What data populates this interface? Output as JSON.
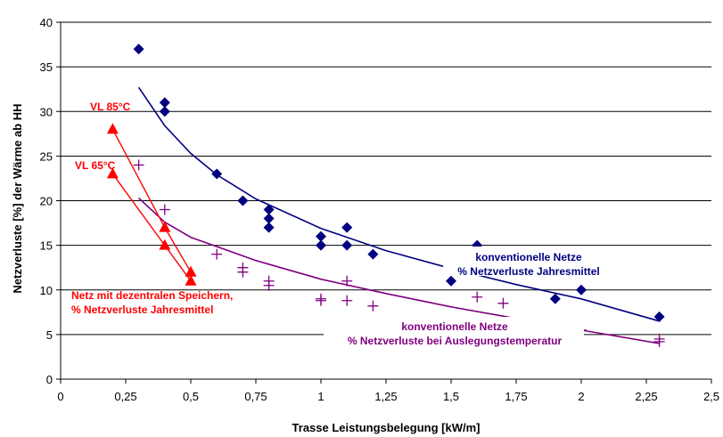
{
  "chart_data": {
    "type": "scatter",
    "xlabel": "Trasse Leistungsbelegung [kW/m]",
    "ylabel": "Netzverluste [%] der Wärme ab HH",
    "xlim": [
      0,
      2.5
    ],
    "ylim": [
      0,
      40
    ],
    "x_ticks": [
      "0",
      "0,25",
      "0,5",
      "0,75",
      "1",
      "1,25",
      "1,5",
      "1,75",
      "2",
      "2,25",
      "2,5"
    ],
    "y_ticks": [
      "0",
      "5",
      "10",
      "15",
      "20",
      "25",
      "30",
      "35",
      "40"
    ],
    "grid": "horizontal",
    "series": [
      {
        "marker": "diamond",
        "color": "#000080",
        "points": [
          [
            0.3,
            37
          ],
          [
            0.4,
            31
          ],
          [
            0.4,
            30
          ],
          [
            0.6,
            23
          ],
          [
            0.7,
            20
          ],
          [
            0.8,
            19
          ],
          [
            0.8,
            18
          ],
          [
            0.8,
            17
          ],
          [
            1.0,
            16
          ],
          [
            1.0,
            15
          ],
          [
            1.1,
            17
          ],
          [
            1.1,
            15
          ],
          [
            1.2,
            14
          ],
          [
            1.5,
            11
          ],
          [
            1.6,
            15
          ],
          [
            1.9,
            9
          ],
          [
            2.0,
            10
          ],
          [
            2.3,
            7
          ]
        ],
        "trendline": [
          [
            0.3,
            32.7
          ],
          [
            0.4,
            28.4
          ],
          [
            0.5,
            25.3
          ],
          [
            0.6,
            22.9
          ],
          [
            0.75,
            20.2
          ],
          [
            1.0,
            16.9
          ],
          [
            1.25,
            14.4
          ],
          [
            1.5,
            12.4
          ],
          [
            1.75,
            10.6
          ],
          [
            2.0,
            9.0
          ],
          [
            2.3,
            6.5
          ]
        ]
      },
      {
        "marker": "plus",
        "color": "#800080",
        "points": [
          [
            0.3,
            24
          ],
          [
            0.4,
            19
          ],
          [
            0.6,
            14
          ],
          [
            0.7,
            12.5
          ],
          [
            0.7,
            12
          ],
          [
            0.8,
            11
          ],
          [
            0.8,
            10.5
          ],
          [
            1.0,
            9
          ],
          [
            1.0,
            8.8
          ],
          [
            1.1,
            11
          ],
          [
            1.1,
            8.8
          ],
          [
            1.2,
            8.2
          ],
          [
            1.6,
            9.2
          ],
          [
            1.7,
            8.5
          ],
          [
            2.0,
            5.5
          ],
          [
            2.3,
            4.5
          ],
          [
            2.3,
            4.2
          ]
        ],
        "trendline": [
          [
            0.3,
            20.3
          ],
          [
            0.4,
            17.6
          ],
          [
            0.5,
            15.9
          ],
          [
            0.75,
            13.3
          ],
          [
            1.0,
            11.2
          ],
          [
            1.25,
            9.6
          ],
          [
            1.5,
            8.1
          ],
          [
            1.75,
            6.8
          ],
          [
            2.0,
            5.5
          ],
          [
            2.3,
            4.0
          ]
        ]
      },
      {
        "name": "VL 85°C",
        "marker": "triangle",
        "color": "#ff0000",
        "points": [
          [
            0.2,
            28
          ],
          [
            0.4,
            17
          ],
          [
            0.5,
            12
          ]
        ]
      },
      {
        "name": "VL 65°C",
        "marker": "triangle",
        "color": "#ff0000",
        "points": [
          [
            0.2,
            23
          ],
          [
            0.4,
            15
          ],
          [
            0.5,
            11
          ]
        ]
      }
    ],
    "annotations": [
      {
        "lines": [
          "VL 85°C"
        ],
        "color": "#ff0000"
      },
      {
        "lines": [
          "VL 65°C"
        ],
        "color": "#ff0000"
      },
      {
        "lines": [
          "Netz mit dezentralen Speichern,",
          "% Netzverluste Jahresmittel"
        ],
        "color": "#ff0000"
      },
      {
        "lines": [
          "konventionelle Netze",
          "% Netzverluste Jahresmittel"
        ],
        "color": "#000080"
      },
      {
        "lines": [
          "konventionelle Netze",
          "% Netzverluste bei Auslegungstemperatur"
        ],
        "color": "#800080"
      }
    ]
  }
}
